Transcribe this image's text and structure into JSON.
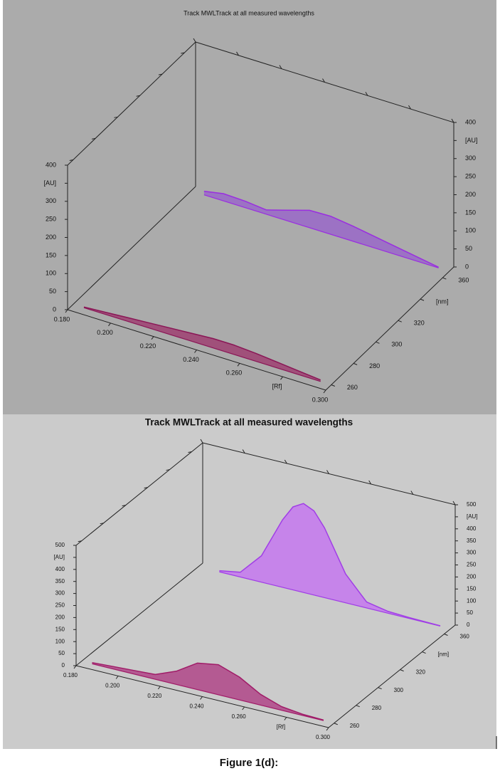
{
  "charts": [
    {
      "chart_data": {
        "type": "line3d",
        "title": "Track MWLTrack at all measured wavelengths",
        "xlim": [
          0.18,
          0.3
        ],
        "xticks": [
          {
            "value": 0.18,
            "label": "0.180"
          },
          {
            "value": 0.2,
            "label": "0.200"
          },
          {
            "value": 0.22,
            "label": "0.220"
          },
          {
            "value": 0.24,
            "label": "0.240"
          },
          {
            "value": 0.26,
            "label": "0.260"
          },
          {
            "value": 0.28,
            "label": "[Rf]"
          },
          {
            "value": 0.3,
            "label": "0.300"
          }
        ],
        "ylim": [
          0,
          400
        ],
        "yticks": [
          0,
          50,
          100,
          150,
          200,
          250,
          300,
          {
            "value": 350,
            "label": "[AU]"
          },
          400
        ],
        "zlim": [
          255,
          370
        ],
        "zticks": [
          260,
          280,
          300,
          320,
          {
            "value": 340,
            "label": "[nm]"
          },
          360
        ],
        "series": [
          {
            "wavelength": 260,
            "color": "#8a1656",
            "fill": "#a0507a",
            "x": [
              0.185,
              0.195,
              0.205,
              0.215,
              0.225,
              0.235,
              0.245,
              0.255,
              0.265,
              0.275,
              0.285,
              0.295
            ],
            "values": [
              2,
              6,
              10,
              14,
              18,
              22,
              26,
              26,
              22,
              16,
              10,
              4
            ]
          },
          {
            "wavelength": 366,
            "color": "#9a2ee0",
            "fill": "#9c72c4",
            "x": [
              0.186,
              0.195,
              0.205,
              0.215,
              0.225,
              0.235,
              0.245,
              0.255,
              0.265,
              0.275,
              0.285,
              0.295
            ],
            "values": [
              10,
              20,
              18,
              12,
              30,
              48,
              50,
              42,
              32,
              22,
              12,
              2
            ]
          }
        ]
      }
    },
    {
      "chart_data": {
        "type": "line3d",
        "title": "Track MWLTrack at all measured wavelengths",
        "xlim": [
          0.18,
          0.3
        ],
        "xticks": [
          {
            "value": 0.18,
            "label": "0.180"
          },
          {
            "value": 0.2,
            "label": "0.200"
          },
          {
            "value": 0.22,
            "label": "0.220"
          },
          {
            "value": 0.24,
            "label": "0.240"
          },
          {
            "value": 0.26,
            "label": "0.260"
          },
          {
            "value": 0.28,
            "label": "[Rf]"
          },
          {
            "value": 0.3,
            "label": "0.300"
          }
        ],
        "ylim": [
          0,
          500
        ],
        "yticks": [
          0,
          50,
          100,
          150,
          200,
          250,
          300,
          350,
          400,
          {
            "value": 450,
            "label": "[AU]"
          },
          500
        ],
        "zlim": [
          255,
          370
        ],
        "zticks": [
          260,
          280,
          300,
          320,
          {
            "value": 340,
            "label": "[nm]"
          },
          360
        ],
        "series": [
          {
            "wavelength": 260,
            "color": "#a01c68",
            "fill": "#b45a92",
            "x": [
              0.185,
              0.195,
              0.205,
              0.215,
              0.225,
              0.235,
              0.245,
              0.255,
              0.265,
              0.275,
              0.285,
              0.295
            ],
            "values": [
              5,
              10,
              15,
              20,
              55,
              110,
              125,
              95,
              45,
              15,
              5,
              2
            ]
          },
          {
            "wavelength": 366,
            "color": "#a03ee6",
            "fill": "#c684ea",
            "x": [
              0.19,
              0.2,
              0.21,
              0.22,
              0.225,
              0.23,
              0.235,
              0.24,
              0.25,
              0.26,
              0.27,
              0.28,
              0.29,
              0.295
            ],
            "values": [
              5,
              20,
              110,
              280,
              345,
              370,
              350,
              290,
              120,
              25,
              8,
              4,
              2,
              1
            ]
          }
        ]
      }
    }
  ],
  "caption": "Figure 1(d):"
}
